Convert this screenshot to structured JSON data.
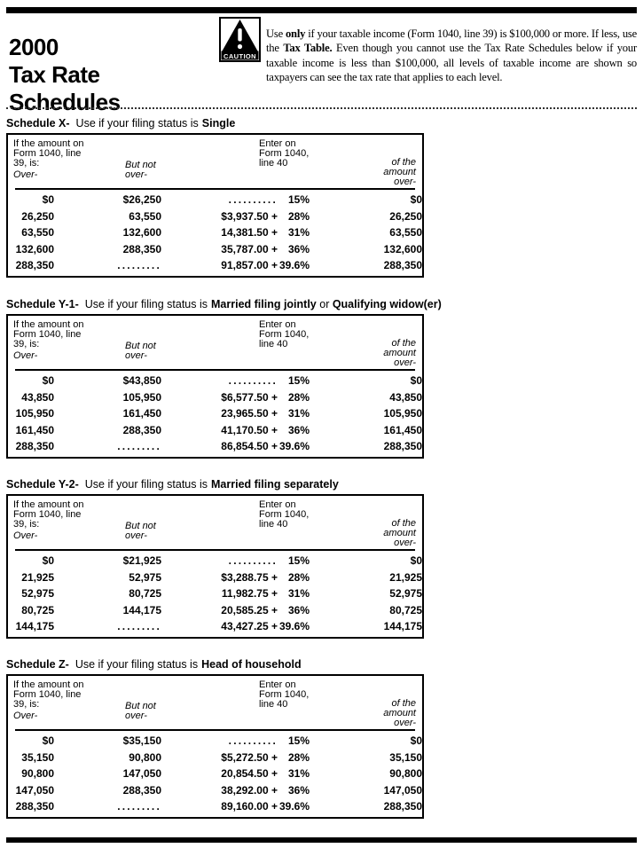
{
  "masthead": {
    "lines": [
      "2000",
      "Tax Rate",
      "Schedules"
    ]
  },
  "caution": {
    "icon_label": "CAUTION",
    "segments": [
      {
        "text": "Use ",
        "bold": false
      },
      {
        "text": "only",
        "bold": true
      },
      {
        "text": " if your taxable income (Form 1040, line 39) is $100,000 or more. If less, use the ",
        "bold": false
      },
      {
        "text": "Tax Table.",
        "bold": true
      },
      {
        "text": " Even though you cannot use the Tax Rate Schedules below if your taxable income is less than $100,000, all levels of taxable income are shown so taxpayers can see the tax rate that applies to each level.",
        "bold": false
      }
    ]
  },
  "table_header": {
    "col1_lines": [
      "If the amount on",
      "Form 1040, line",
      "39, is:"
    ],
    "col1_over": "Over-",
    "col2_lines": [
      "But not",
      "over-"
    ],
    "col3_lines": [
      "Enter on",
      "Form 1040,",
      "line 40"
    ],
    "col4_lines": [
      "of the",
      "amount",
      "over-"
    ]
  },
  "schedules": [
    {
      "label": "Schedule X-",
      "use_text": "Use if your filing status is",
      "status_segments": [
        {
          "text": "Single",
          "bold": true
        }
      ],
      "rows": [
        {
          "over": "$0",
          "but_not_over": "$26,250",
          "base": "..........",
          "rate": "15%",
          "of_over": "$0"
        },
        {
          "over": "26,250",
          "but_not_over": "63,550",
          "base": "$3,937.50 +",
          "rate": "28%",
          "of_over": "26,250"
        },
        {
          "over": "63,550",
          "but_not_over": "132,600",
          "base": "14,381.50 +",
          "rate": "31%",
          "of_over": "63,550"
        },
        {
          "over": "132,600",
          "but_not_over": "288,350",
          "base": "35,787.00 +",
          "rate": "36%",
          "of_over": "132,600"
        },
        {
          "over": "288,350",
          "but_not_over": ".........",
          "base": "91,857.00 +",
          "rate": "39.6%",
          "of_over": "288,350"
        }
      ]
    },
    {
      "label": "Schedule Y-1-",
      "use_text": "Use if your filing status is",
      "status_segments": [
        {
          "text": "Married filing jointly",
          "bold": true
        },
        {
          "text": " or ",
          "bold": false
        },
        {
          "text": "Qualifying widow(er)",
          "bold": true
        }
      ],
      "rows": [
        {
          "over": "$0",
          "but_not_over": "$43,850",
          "base": "..........",
          "rate": "15%",
          "of_over": "$0"
        },
        {
          "over": "43,850",
          "but_not_over": "105,950",
          "base": "$6,577.50 +",
          "rate": "28%",
          "of_over": "43,850"
        },
        {
          "over": "105,950",
          "but_not_over": "161,450",
          "base": "23,965.50 +",
          "rate": "31%",
          "of_over": "105,950"
        },
        {
          "over": "161,450",
          "but_not_over": "288,350",
          "base": "41,170.50 +",
          "rate": "36%",
          "of_over": "161,450"
        },
        {
          "over": "288,350",
          "but_not_over": ".........",
          "base": "86,854.50 +",
          "rate": "39.6%",
          "of_over": "288,350"
        }
      ]
    },
    {
      "label": "Schedule Y-2-",
      "use_text": "Use if your filing status is",
      "status_segments": [
        {
          "text": "Married filing separately",
          "bold": true
        }
      ],
      "rows": [
        {
          "over": "$0",
          "but_not_over": "$21,925",
          "base": "..........",
          "rate": "15%",
          "of_over": "$0"
        },
        {
          "over": "21,925",
          "but_not_over": "52,975",
          "base": "$3,288.75 +",
          "rate": "28%",
          "of_over": "21,925"
        },
        {
          "over": "52,975",
          "but_not_over": "80,725",
          "base": "11,982.75 +",
          "rate": "31%",
          "of_over": "52,975"
        },
        {
          "over": "80,725",
          "but_not_over": "144,175",
          "base": "20,585.25 +",
          "rate": "36%",
          "of_over": "80,725"
        },
        {
          "over": "144,175",
          "but_not_over": ".........",
          "base": "43,427.25 +",
          "rate": "39.6%",
          "of_over": "144,175"
        }
      ]
    },
    {
      "label": "Schedule Z-",
      "use_text": "Use if your filing status is",
      "status_segments": [
        {
          "text": "Head of household",
          "bold": true
        }
      ],
      "rows": [
        {
          "over": "$0",
          "but_not_over": "$35,150",
          "base": "..........",
          "rate": "15%",
          "of_over": "$0"
        },
        {
          "over": "35,150",
          "but_not_over": "90,800",
          "base": "$5,272.50 +",
          "rate": "28%",
          "of_over": "35,150"
        },
        {
          "over": "90,800",
          "but_not_over": "147,050",
          "base": "20,854.50 +",
          "rate": "31%",
          "of_over": "90,800"
        },
        {
          "over": "147,050",
          "but_not_over": "288,350",
          "base": "38,292.00 +",
          "rate": "36%",
          "of_over": "147,050"
        },
        {
          "over": "288,350",
          "but_not_over": ".........",
          "base": "89,160.00 +",
          "rate": "39.6%",
          "of_over": "288,350"
        }
      ]
    }
  ]
}
